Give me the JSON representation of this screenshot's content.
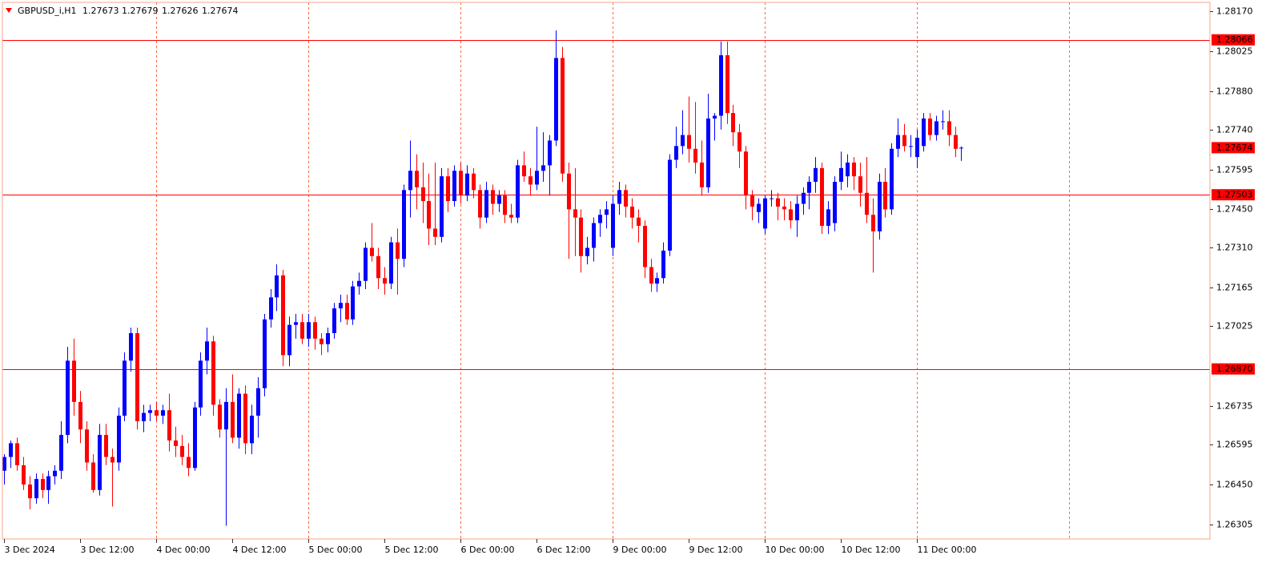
{
  "chart_data": {
    "type": "candlestick",
    "symbol": "GBPUSD_i,H1",
    "header_ohlc": [
      1.27673,
      1.27679,
      1.27626,
      1.27674
    ],
    "up_color": "#0000ff",
    "down_color": "#ff0000",
    "line_color": "#ff0000",
    "grid_color": "#ff6a3d",
    "grid": true,
    "ylim": [
      1.26252,
      1.28202
    ],
    "yticks": [
      {
        "value": 1.2817,
        "label": "1.28170"
      },
      1.28025,
      {
        "value": 1.2788,
        "label": "1.27880"
      },
      {
        "value": 1.2774,
        "label": "1.27740"
      },
      1.27595,
      {
        "value": 1.2745,
        "label": "1.27450"
      },
      {
        "value": 1.2731,
        "label": "1.27310"
      },
      1.27165,
      1.27025,
      1.26735,
      1.26595,
      {
        "value": 1.2645,
        "label": "1.26450"
      },
      1.26305
    ],
    "hlines": [
      1.28066,
      1.27503,
      {
        "value": 1.2687,
        "label": "1.26870"
      }
    ],
    "current_price": 1.27674,
    "categories": [
      "3 Dec 2024",
      null,
      null,
      null,
      null,
      null,
      null,
      null,
      null,
      null,
      null,
      null,
      "3 Dec 12:00",
      null,
      null,
      null,
      null,
      null,
      null,
      null,
      null,
      null,
      null,
      null,
      "4 Dec 00:00",
      null,
      null,
      null,
      null,
      null,
      null,
      null,
      null,
      null,
      null,
      null,
      "4 Dec 12:00",
      null,
      null,
      null,
      null,
      null,
      null,
      null,
      null,
      null,
      null,
      null,
      "5 Dec 00:00",
      null,
      null,
      null,
      null,
      null,
      null,
      null,
      null,
      null,
      null,
      null,
      "5 Dec 12:00",
      null,
      null,
      null,
      null,
      null,
      null,
      null,
      null,
      null,
      null,
      null,
      "6 Dec 00:00",
      null,
      null,
      null,
      null,
      null,
      null,
      null,
      null,
      null,
      null,
      null,
      "6 Dec 12:00",
      null,
      null,
      null,
      null,
      null,
      null,
      null,
      null,
      null,
      null,
      null,
      "9 Dec 00:00",
      null,
      null,
      null,
      null,
      null,
      null,
      null,
      null,
      null,
      null,
      null,
      "9 Dec 12:00",
      null,
      null,
      null,
      null,
      null,
      null,
      null,
      null,
      null,
      null,
      null,
      "10 Dec 00:00",
      null,
      null,
      null,
      null,
      null,
      null,
      null,
      null,
      null,
      null,
      null,
      "10 Dec 12:00",
      null,
      null,
      null,
      null,
      null,
      null,
      null,
      null,
      null,
      null,
      null,
      "11 Dec 00:00",
      null,
      null,
      null,
      null,
      null,
      null,
      null
    ],
    "open": [
      1.265,
      1.2655,
      1.266,
      1.2652,
      1.2645,
      1.264,
      1.2647,
      1.2643,
      1.2648,
      1.265,
      1.2663,
      1.269,
      1.2675,
      1.2665,
      1.2653,
      1.2643,
      1.2663,
      1.2655,
      1.2653,
      1.267,
      1.269,
      1.27,
      1.2668,
      1.2671,
      1.2672,
      1.267,
      1.2672,
      1.2661,
      1.2659,
      1.2655,
      1.2651,
      1.2673,
      1.269,
      1.2697,
      1.2674,
      1.2665,
      1.2675,
      1.2662,
      1.2678,
      1.266,
      1.267,
      1.268,
      1.2705,
      1.2713,
      1.2721,
      1.2692,
      1.2703,
      1.2704,
      1.2698,
      1.2704,
      1.2698,
      1.2696,
      1.27,
      1.2709,
      1.2711,
      1.2705,
      1.2717,
      1.2719,
      1.2731,
      1.2728,
      1.272,
      1.2718,
      1.2733,
      1.2727,
      1.2752,
      1.2759,
      1.2753,
      1.2748,
      1.2738,
      1.2735,
      1.2757,
      1.2748,
      1.2759,
      1.275,
      1.2758,
      1.2752,
      1.2742,
      1.2752,
      1.2747,
      1.275,
      1.2743,
      1.2742,
      1.2761,
      1.2757,
      1.2754,
      1.2759,
      1.2761,
      1.277,
      1.28,
      1.2758,
      1.2745,
      1.2742,
      1.2728,
      1.2731,
      1.274,
      1.2743,
      1.2731,
      1.2747,
      1.2752,
      1.2746,
      1.2742,
      1.2739,
      1.2724,
      1.2718,
      1.272,
      1.273,
      1.2763,
      1.2768,
      1.2772,
      1.2767,
      1.2762,
      1.2753,
      1.2778,
      1.2779,
      1.2801,
      1.278,
      1.2773,
      1.2766,
      1.275,
      1.2744,
      1.2738,
      1.2749,
      1.2749,
      1.2746,
      1.2745,
      1.2741,
      1.2747,
      1.2751,
      1.2755,
      1.276,
      1.2739,
      1.274,
      1.2755,
      1.2757,
      1.2762,
      1.2757,
      1.2751,
      1.2743,
      1.2737,
      1.2755,
      1.2745,
      1.2767,
      1.2772,
      1.2768,
      1.2764,
      1.2768,
      1.2778,
      1.2772,
      1.2777,
      1.2777,
      1.2772,
      1.27673
    ],
    "high": [
      1.2656,
      1.2661,
      1.2662,
      1.2655,
      1.2648,
      1.2649,
      1.2649,
      1.265,
      1.2652,
      1.2668,
      1.2695,
      1.2698,
      1.2679,
      1.2668,
      1.2656,
      1.2667,
      1.2667,
      1.2658,
      1.2673,
      1.2693,
      1.2702,
      1.2702,
      1.2674,
      1.2674,
      1.2675,
      1.2674,
      1.2678,
      1.2666,
      1.2663,
      1.266,
      1.2675,
      1.2693,
      1.2702,
      1.2699,
      1.2676,
      1.268,
      1.2685,
      1.268,
      1.2681,
      1.2674,
      1.2684,
      1.2707,
      1.2716,
      1.2725,
      1.2723,
      1.2706,
      1.2707,
      1.2707,
      1.2707,
      1.2706,
      1.27,
      1.2702,
      1.2711,
      1.2714,
      1.2714,
      1.2719,
      1.2722,
      1.2733,
      1.274,
      1.2731,
      1.2724,
      1.2735,
      1.2738,
      1.2754,
      1.277,
      1.2765,
      1.2762,
      1.2758,
      1.2762,
      1.276,
      1.276,
      1.2761,
      1.2762,
      1.2761,
      1.276,
      1.2754,
      1.2755,
      1.2754,
      1.2752,
      1.2752,
      1.2747,
      1.2763,
      1.2766,
      1.276,
      1.2775,
      1.2773,
      1.2772,
      1.281,
      1.2804,
      1.2762,
      1.276,
      1.2745,
      1.2735,
      1.2742,
      1.2745,
      1.2748,
      1.275,
      1.2755,
      1.2754,
      1.2749,
      1.2745,
      1.2741,
      1.2727,
      1.2722,
      1.2733,
      1.2765,
      1.2775,
      1.2781,
      1.2786,
      1.2784,
      1.277,
      1.2787,
      1.278,
      1.2806,
      1.2806,
      1.2783,
      1.2776,
      1.2768,
      1.2752,
      1.2749,
      1.275,
      1.2752,
      1.2751,
      1.2749,
      1.2748,
      1.275,
      1.2753,
      1.2757,
      1.2764,
      1.2762,
      1.2748,
      1.2757,
      1.2766,
      1.2765,
      1.2764,
      1.2762,
      1.2764,
      1.2749,
      1.2758,
      1.276,
      1.2769,
      1.2778,
      1.2776,
      1.2772,
      1.2774,
      1.278,
      1.278,
      1.2779,
      1.2781,
      1.2781,
      1.2775,
      1.27679
    ],
    "low": [
      1.2645,
      1.2651,
      1.265,
      1.2643,
      1.2636,
      1.2638,
      1.264,
      1.2638,
      1.2645,
      1.2647,
      1.266,
      1.267,
      1.266,
      1.265,
      1.2642,
      1.2641,
      1.2652,
      1.2637,
      1.265,
      1.2668,
      1.2686,
      1.2665,
      1.2664,
      1.2668,
      1.2668,
      1.2667,
      1.2657,
      1.2655,
      1.2652,
      1.2648,
      1.265,
      1.267,
      1.2685,
      1.267,
      1.2662,
      1.263,
      1.266,
      1.2658,
      1.2656,
      1.2656,
      1.2662,
      1.2677,
      1.2702,
      1.2708,
      1.2688,
      1.2688,
      1.2698,
      1.2696,
      1.2695,
      1.2694,
      1.2692,
      1.2693,
      1.2698,
      1.2704,
      1.2703,
      1.2703,
      1.2714,
      1.2716,
      1.2726,
      1.2716,
      1.2714,
      1.2716,
      1.2714,
      1.2724,
      1.2742,
      1.2745,
      1.274,
      1.2732,
      1.2732,
      1.2733,
      1.2744,
      1.2746,
      1.2747,
      1.2748,
      1.2749,
      1.2738,
      1.274,
      1.2743,
      1.2744,
      1.274,
      1.274,
      1.274,
      1.2755,
      1.275,
      1.2752,
      1.2755,
      1.275,
      1.2768,
      1.2755,
      1.2727,
      1.2728,
      1.2722,
      1.2725,
      1.2726,
      1.2735,
      1.2738,
      1.2728,
      1.2743,
      1.2742,
      1.2738,
      1.2733,
      1.272,
      1.2715,
      1.2715,
      1.2718,
      1.2728,
      1.276,
      1.2765,
      1.2762,
      1.2758,
      1.275,
      1.2751,
      1.277,
      1.2774,
      1.2776,
      1.2768,
      1.276,
      1.2745,
      1.2741,
      1.274,
      1.2736,
      1.2746,
      1.2741,
      1.2741,
      1.2738,
      1.2735,
      1.2743,
      1.2745,
      1.2751,
      1.2736,
      1.2736,
      1.2737,
      1.2752,
      1.2753,
      1.2752,
      1.2746,
      1.274,
      1.2722,
      1.2734,
      1.2742,
      1.2743,
      1.2764,
      1.2766,
      1.2764,
      1.276,
      1.2766,
      1.277,
      1.277,
      1.2774,
      1.2768,
      1.2764,
      1.27626
    ],
    "close": [
      1.2655,
      1.266,
      1.2652,
      1.2645,
      1.264,
      1.2647,
      1.2643,
      1.2648,
      1.265,
      1.2663,
      1.269,
      1.2675,
      1.2665,
      1.2653,
      1.2643,
      1.2663,
      1.2655,
      1.2653,
      1.267,
      1.269,
      1.27,
      1.2668,
      1.2671,
      1.2672,
      1.267,
      1.2672,
      1.2661,
      1.2659,
      1.2655,
      1.2651,
      1.2673,
      1.269,
      1.2697,
      1.2674,
      1.2665,
      1.2675,
      1.2662,
      1.2678,
      1.266,
      1.267,
      1.268,
      1.2705,
      1.2713,
      1.2721,
      1.2692,
      1.2703,
      1.2704,
      1.2698,
      1.2704,
      1.2698,
      1.2696,
      1.27,
      1.2709,
      1.2711,
      1.2705,
      1.2717,
      1.2719,
      1.2731,
      1.2728,
      1.272,
      1.2718,
      1.2733,
      1.2727,
      1.2752,
      1.2759,
      1.2753,
      1.2748,
      1.2738,
      1.2735,
      1.2757,
      1.2748,
      1.2759,
      1.275,
      1.2758,
      1.2752,
      1.2742,
      1.2752,
      1.2747,
      1.275,
      1.2743,
      1.2742,
      1.2761,
      1.2757,
      1.2754,
      1.2759,
      1.2761,
      1.277,
      1.28,
      1.2758,
      1.2745,
      1.2742,
      1.2728,
      1.2731,
      1.274,
      1.2743,
      1.2745,
      1.2747,
      1.2752,
      1.2746,
      1.2742,
      1.2739,
      1.2724,
      1.2718,
      1.272,
      1.273,
      1.2763,
      1.2768,
      1.2772,
      1.2767,
      1.2762,
      1.2753,
      1.2778,
      1.2779,
      1.2801,
      1.278,
      1.2773,
      1.2766,
      1.275,
      1.2746,
      1.2747,
      1.2749,
      1.2749,
      1.2746,
      1.2745,
      1.2741,
      1.2747,
      1.2751,
      1.2755,
      1.276,
      1.2739,
      1.2745,
      1.2755,
      1.276,
      1.2762,
      1.2757,
      1.2751,
      1.2743,
      1.2737,
      1.2755,
      1.2745,
      1.2767,
      1.2772,
      1.2768,
      1.2768,
      1.2771,
      1.2778,
      1.2772,
      1.2777,
      1.2777,
      1.2772,
      1.2767,
      1.27674
    ]
  }
}
